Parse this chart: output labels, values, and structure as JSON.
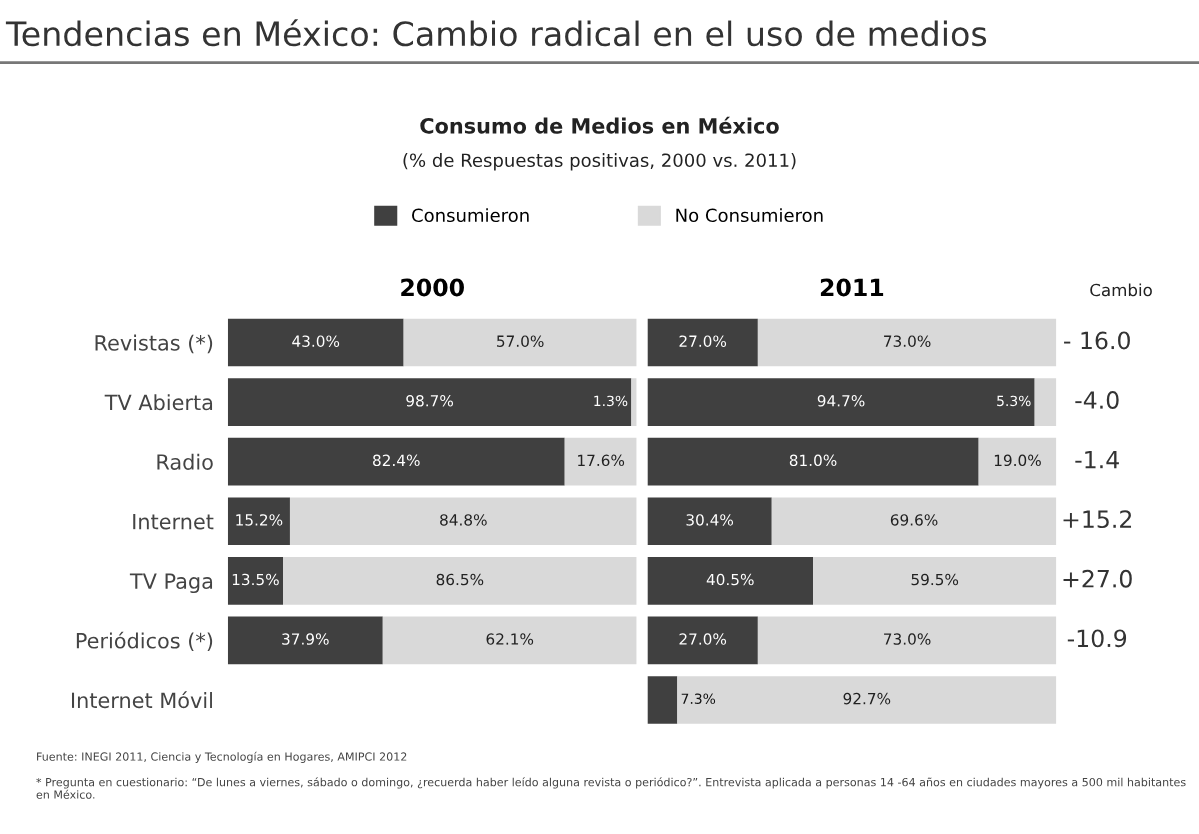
{
  "chart_data": [
    {
      "type": "bar",
      "orientation": "horizontal",
      "stacked": true,
      "title": "Consumo de Medios en México",
      "subtitle": "(% de Respuestas positivas, 2000 vs. 2011)",
      "categories": [
        "Revistas (*)",
        "TV Abierta",
        "Radio",
        "Internet",
        "TV Paga",
        "Periódicos (*)",
        "Internet Móvil"
      ],
      "series": [
        {
          "name": "Consumieron",
          "color": "#404040",
          "values": [
            43.0,
            98.7,
            82.4,
            15.2,
            13.5,
            37.9,
            null
          ],
          "value_labels": [
            "43.0%",
            "98.7%",
            "82.4%",
            "15.2%",
            "13.5%",
            "37.9%",
            null
          ]
        },
        {
          "name": "No Consumieron",
          "color": "#d9d9d9",
          "values": [
            57.0,
            1.3,
            17.6,
            84.8,
            86.5,
            62.1,
            null
          ],
          "value_labels": [
            "57.0%",
            "1.3%",
            "17.6%",
            "84.8%",
            "86.5%",
            "62.1%",
            null
          ]
        }
      ],
      "xlim": [
        0,
        100
      ],
      "legend": "top",
      "tick_labels": "y",
      "annotations": [
        "Tendencias en México: Cambio radical en el uso de medios",
        "2000",
        "Fuente: INEGI 2011, Ciencia y Tecnología en Hogares, AMIPCI 2012",
        "* Pregunta en cuestionario: “De lunes a viernes, sábado o domingo, ¿recuerda haber leído alguna revista o periódico?”. Entrevista aplicada a personas 14 -64 años en ciudades mayores a 500 mil habitantes en México."
      ]
    },
    {
      "type": "bar",
      "orientation": "horizontal",
      "stacked": true,
      "title": "2011",
      "categories": [
        null,
        null,
        null,
        null,
        null,
        null,
        null
      ],
      "series": [
        {
          "color": "#404040",
          "values": [
            27.0,
            94.7,
            81.0,
            30.4,
            40.5,
            27.0,
            7.3
          ],
          "value_labels": [
            "27.0%",
            "94.7%",
            "81.0%",
            "30.4%",
            "40.5%",
            "27.0%",
            "7.3%"
          ]
        },
        {
          "color": "#d9d9d9",
          "values": [
            73.0,
            5.3,
            19.0,
            69.6,
            59.5,
            73.0,
            92.7
          ],
          "value_labels": [
            "73.0%",
            "5.3%",
            "19.0%",
            "69.6%",
            "59.5%",
            "73.0%",
            "92.7%"
          ]
        }
      ],
      "xlim": [
        0,
        100
      ],
      "tick_labels": false,
      "annotations": [
        "Cambio",
        "- 16.0",
        "-4.0",
        "-1.4",
        "+15.2",
        "+27.0",
        "-10.9"
      ]
    }
  ]
}
